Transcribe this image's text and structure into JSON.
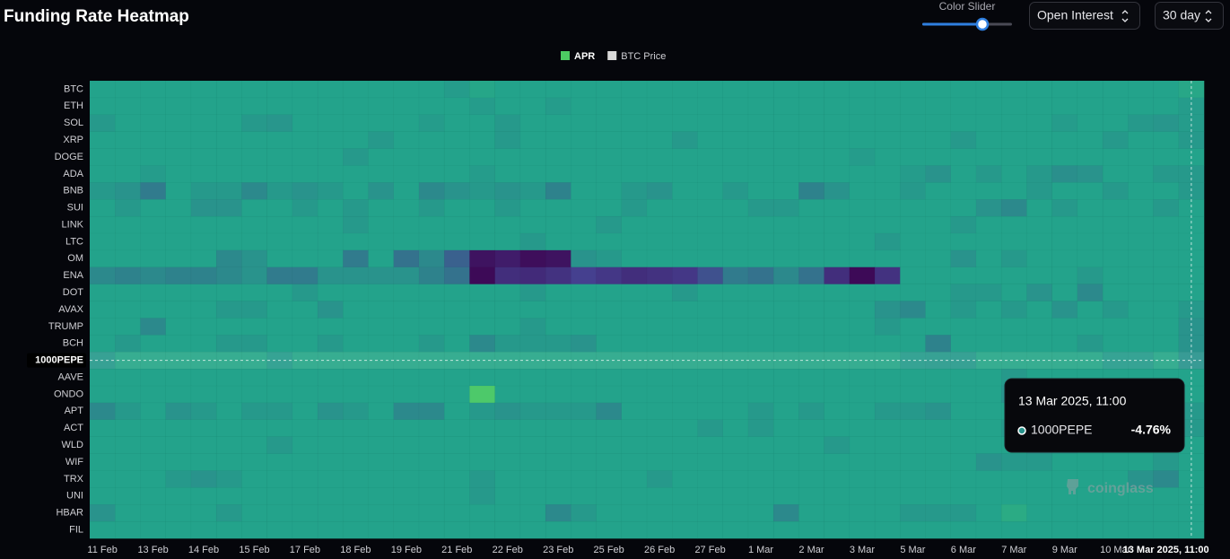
{
  "header": {
    "title": "Funding Rate Heatmap",
    "slider_label": "Color Slider",
    "metric": "Open Interest",
    "range": "30 day"
  },
  "chart_data": {
    "type": "heatmap",
    "legend": [
      {
        "name": "APR",
        "color": "#4ccb62"
      },
      {
        "name": "BTC Price",
        "color": "#d9d9d9"
      }
    ],
    "x": [
      "11 Feb",
      null,
      "13 Feb",
      null,
      "14 Feb",
      null,
      "15 Feb",
      null,
      "17 Feb",
      null,
      "18 Feb",
      null,
      "19 Feb",
      null,
      "21 Feb",
      null,
      "22 Feb",
      null,
      "23 Feb",
      null,
      "25 Feb",
      null,
      "26 Feb",
      null,
      "27 Feb",
      null,
      "1 Mar",
      null,
      "2 Mar",
      null,
      "3 Mar",
      null,
      "5 Mar",
      null,
      "6 Mar",
      null,
      "7 Mar",
      null,
      "9 Mar",
      null,
      "10 Mar",
      null,
      "13 Mar 2025, 11:00",
      null
    ],
    "rows": [
      "BTC",
      "ETH",
      "SOL",
      "XRP",
      "DOGE",
      "ADA",
      "BNB",
      "SUI",
      "LINK",
      "LTC",
      "OM",
      "ENA",
      "DOT",
      "AVAX",
      "TRUMP",
      "BCH",
      "1000PEPE",
      "AAVE",
      "ONDO",
      "APT",
      "ACT",
      "WLD",
      "WIF",
      "TRX",
      "UNI",
      "HBAR",
      "FIL"
    ],
    "values": [
      [
        0,
        0,
        0,
        0,
        0,
        0,
        0,
        0,
        0,
        0,
        0,
        0,
        0,
        0,
        -2,
        2,
        0,
        0,
        0,
        0,
        0,
        0,
        0,
        0,
        0,
        0,
        0,
        0,
        0,
        0,
        0,
        0,
        0,
        0,
        0,
        0,
        0,
        0,
        0,
        0,
        0,
        0,
        0,
        3
      ],
      [
        0,
        0,
        0,
        0,
        0,
        0,
        0,
        0,
        0,
        0,
        0,
        0,
        0,
        0,
        0,
        -2,
        0,
        0,
        -2,
        0,
        0,
        0,
        0,
        0,
        0,
        0,
        0,
        0,
        0,
        0,
        0,
        0,
        0,
        0,
        0,
        0,
        0,
        0,
        0,
        0,
        0,
        0,
        0,
        -2
      ],
      [
        -3,
        0,
        0,
        0,
        0,
        0,
        -3,
        -4,
        0,
        0,
        0,
        0,
        0,
        -2,
        0,
        0,
        -3,
        0,
        0,
        0,
        0,
        0,
        0,
        0,
        0,
        0,
        0,
        0,
        0,
        0,
        0,
        0,
        0,
        0,
        0,
        0,
        0,
        0,
        -2,
        0,
        0,
        -3,
        -4,
        -2
      ],
      [
        0,
        0,
        0,
        0,
        0,
        0,
        0,
        0,
        0,
        0,
        0,
        -3,
        0,
        0,
        0,
        0,
        -3,
        0,
        0,
        0,
        0,
        0,
        0,
        -3,
        0,
        0,
        0,
        0,
        0,
        0,
        0,
        0,
        0,
        0,
        -3,
        0,
        0,
        0,
        0,
        0,
        -3,
        0,
        0,
        -3
      ],
      [
        0,
        0,
        0,
        0,
        0,
        0,
        0,
        0,
        0,
        0,
        -3,
        0,
        0,
        0,
        0,
        0,
        0,
        0,
        0,
        0,
        0,
        0,
        0,
        0,
        0,
        0,
        0,
        0,
        0,
        0,
        -2,
        0,
        0,
        0,
        0,
        0,
        0,
        0,
        0,
        0,
        0,
        0,
        0,
        0
      ],
      [
        0,
        0,
        -2,
        0,
        0,
        0,
        0,
        0,
        0,
        0,
        0,
        0,
        0,
        0,
        0,
        -2,
        0,
        0,
        0,
        0,
        0,
        0,
        0,
        0,
        0,
        0,
        0,
        0,
        0,
        0,
        0,
        0,
        -2,
        -5,
        0,
        -3,
        0,
        -3,
        -6,
        -5,
        0,
        0,
        -3,
        -3
      ],
      [
        -3,
        -5,
        -12,
        0,
        -3,
        -3,
        -8,
        -3,
        -5,
        -3,
        0,
        -5,
        0,
        -8,
        -5,
        -3,
        -5,
        -3,
        -10,
        0,
        0,
        -3,
        -5,
        0,
        0,
        -3,
        0,
        0,
        -10,
        -5,
        0,
        0,
        -3,
        0,
        0,
        0,
        0,
        -3,
        0,
        0,
        -3,
        0,
        0,
        -3
      ],
      [
        0,
        -3,
        0,
        0,
        -5,
        -5,
        0,
        0,
        -3,
        0,
        -3,
        0,
        0,
        -3,
        0,
        0,
        -3,
        0,
        0,
        0,
        0,
        -3,
        0,
        0,
        0,
        0,
        -3,
        -3,
        0,
        0,
        0,
        0,
        0,
        0,
        0,
        -5,
        -8,
        0,
        -3,
        0,
        0,
        0,
        -3,
        0
      ],
      [
        0,
        0,
        0,
        0,
        0,
        0,
        0,
        0,
        0,
        0,
        -3,
        0,
        0,
        0,
        0,
        0,
        0,
        0,
        0,
        0,
        -3,
        0,
        0,
        0,
        0,
        0,
        0,
        0,
        0,
        0,
        0,
        0,
        0,
        0,
        -3,
        0,
        0,
        0,
        0,
        0,
        0,
        0,
        0,
        0
      ],
      [
        0,
        0,
        0,
        0,
        0,
        0,
        0,
        0,
        0,
        0,
        0,
        0,
        0,
        0,
        0,
        0,
        0,
        -3,
        0,
        0,
        0,
        0,
        0,
        0,
        0,
        0,
        0,
        0,
        0,
        0,
        0,
        -3,
        0,
        0,
        0,
        0,
        0,
        0,
        0,
        0,
        0,
        0,
        0,
        0
      ],
      [
        0,
        0,
        0,
        0,
        0,
        -8,
        -5,
        0,
        0,
        0,
        -12,
        0,
        -15,
        -8,
        -20,
        -55,
        -50,
        -58,
        -55,
        -5,
        -3,
        0,
        0,
        0,
        0,
        0,
        0,
        0,
        0,
        0,
        0,
        0,
        0,
        0,
        -5,
        0,
        -3,
        0,
        0,
        0,
        0,
        0,
        0,
        0
      ],
      [
        -8,
        -10,
        -8,
        -10,
        -10,
        -8,
        -5,
        -12,
        -12,
        -5,
        -5,
        -5,
        -5,
        -10,
        -15,
        -60,
        -40,
        -42,
        -38,
        -30,
        -35,
        -40,
        -38,
        -35,
        -25,
        -12,
        -15,
        -8,
        -15,
        -40,
        -60,
        -38,
        0,
        0,
        0,
        0,
        0,
        0,
        0,
        -3,
        0,
        0,
        0,
        0
      ],
      [
        0,
        0,
        0,
        0,
        0,
        0,
        0,
        0,
        -3,
        0,
        0,
        0,
        0,
        0,
        0,
        0,
        0,
        -3,
        0,
        0,
        0,
        0,
        0,
        -3,
        0,
        0,
        0,
        0,
        0,
        0,
        0,
        0,
        0,
        0,
        -3,
        -3,
        0,
        -5,
        0,
        -8,
        0,
        0,
        0,
        0
      ],
      [
        0,
        0,
        0,
        0,
        0,
        -3,
        -3,
        0,
        0,
        -5,
        0,
        0,
        0,
        0,
        0,
        0,
        0,
        0,
        0,
        0,
        0,
        0,
        0,
        0,
        0,
        0,
        0,
        0,
        0,
        0,
        0,
        -5,
        -8,
        0,
        -3,
        0,
        -3,
        0,
        -5,
        0,
        -3,
        0,
        0,
        -3
      ],
      [
        0,
        0,
        -8,
        0,
        0,
        0,
        0,
        0,
        0,
        0,
        0,
        0,
        0,
        0,
        0,
        0,
        0,
        -3,
        0,
        0,
        0,
        0,
        0,
        0,
        0,
        0,
        0,
        0,
        0,
        0,
        0,
        -3,
        0,
        0,
        0,
        0,
        0,
        0,
        0,
        0,
        0,
        0,
        0,
        -5
      ],
      [
        0,
        -3,
        0,
        0,
        0,
        -3,
        -3,
        0,
        0,
        -3,
        0,
        0,
        0,
        -3,
        0,
        -8,
        -3,
        -3,
        -3,
        -5,
        0,
        0,
        0,
        0,
        0,
        0,
        0,
        0,
        0,
        0,
        0,
        0,
        0,
        -10,
        0,
        0,
        0,
        0,
        0,
        -3,
        0,
        0,
        0,
        -5
      ],
      [
        -3,
        2,
        2,
        2,
        2,
        2,
        2,
        -2,
        2,
        2,
        2,
        2,
        2,
        2,
        2,
        2,
        2,
        2,
        2,
        2,
        2,
        2,
        2,
        2,
        2,
        2,
        2,
        2,
        2,
        2,
        2,
        2,
        -2,
        -3,
        -3,
        2,
        2,
        2,
        2,
        2,
        -2,
        -2,
        2,
        -4.76
      ],
      [
        0,
        0,
        0,
        0,
        0,
        0,
        0,
        0,
        0,
        0,
        0,
        0,
        0,
        0,
        0,
        0,
        0,
        0,
        0,
        0,
        0,
        0,
        0,
        0,
        0,
        0,
        0,
        0,
        0,
        0,
        0,
        0,
        0,
        0,
        0,
        0,
        -3,
        0,
        0,
        0,
        0,
        0,
        0,
        0
      ],
      [
        0,
        0,
        0,
        0,
        0,
        0,
        0,
        0,
        0,
        0,
        0,
        0,
        0,
        0,
        0,
        25,
        0,
        0,
        0,
        0,
        0,
        0,
        0,
        0,
        0,
        0,
        0,
        0,
        0,
        0,
        0,
        0,
        0,
        0,
        0,
        0,
        -5,
        0,
        -3,
        0,
        0,
        0,
        0,
        0
      ],
      [
        -8,
        -3,
        0,
        -5,
        -3,
        0,
        -3,
        -3,
        0,
        -5,
        -3,
        0,
        -8,
        -8,
        0,
        -3,
        -5,
        -3,
        -3,
        -3,
        -8,
        0,
        0,
        0,
        0,
        0,
        -3,
        0,
        -3,
        0,
        0,
        -3,
        -3,
        -5,
        0,
        0,
        0,
        -3,
        0,
        0,
        0,
        0,
        0,
        -3
      ],
      [
        0,
        0,
        0,
        0,
        0,
        0,
        0,
        0,
        0,
        0,
        0,
        0,
        0,
        0,
        0,
        0,
        0,
        0,
        0,
        0,
        0,
        0,
        0,
        0,
        -3,
        0,
        -3,
        0,
        0,
        0,
        0,
        0,
        0,
        0,
        0,
        0,
        -3,
        0,
        0,
        0,
        0,
        0,
        0,
        -3
      ],
      [
        0,
        0,
        0,
        0,
        0,
        0,
        0,
        -3,
        0,
        0,
        0,
        0,
        0,
        0,
        0,
        0,
        0,
        0,
        0,
        0,
        0,
        0,
        0,
        0,
        0,
        0,
        0,
        0,
        0,
        -3,
        0,
        0,
        0,
        0,
        0,
        0,
        0,
        -5,
        -3,
        0,
        0,
        0,
        0,
        0
      ],
      [
        0,
        0,
        0,
        0,
        0,
        0,
        0,
        0,
        0,
        0,
        0,
        0,
        0,
        0,
        0,
        0,
        0,
        0,
        0,
        0,
        0,
        0,
        0,
        0,
        0,
        0,
        0,
        0,
        0,
        0,
        0,
        0,
        0,
        0,
        0,
        -5,
        -3,
        -3,
        0,
        0,
        0,
        0,
        -3,
        0
      ],
      [
        0,
        0,
        0,
        -3,
        -5,
        -3,
        0,
        0,
        0,
        0,
        0,
        0,
        0,
        0,
        0,
        -3,
        0,
        0,
        0,
        0,
        0,
        0,
        -3,
        0,
        0,
        0,
        0,
        0,
        0,
        0,
        0,
        0,
        0,
        0,
        0,
        0,
        0,
        0,
        0,
        0,
        0,
        -5,
        -8,
        0
      ],
      [
        0,
        0,
        0,
        0,
        0,
        0,
        0,
        0,
        0,
        0,
        0,
        0,
        0,
        0,
        0,
        -3,
        0,
        0,
        0,
        0,
        0,
        0,
        0,
        0,
        0,
        0,
        0,
        0,
        0,
        0,
        0,
        0,
        0,
        0,
        0,
        0,
        0,
        0,
        0,
        0,
        0,
        0,
        0,
        0
      ],
      [
        -5,
        0,
        0,
        0,
        0,
        -3,
        0,
        0,
        0,
        0,
        0,
        0,
        0,
        0,
        0,
        0,
        0,
        0,
        -8,
        -3,
        0,
        0,
        0,
        0,
        0,
        0,
        0,
        -8,
        0,
        0,
        0,
        0,
        -3,
        -3,
        -3,
        0,
        5,
        0,
        0,
        0,
        0,
        0,
        0,
        0
      ],
      [
        0,
        0,
        0,
        0,
        0,
        0,
        0,
        0,
        0,
        0,
        0,
        0,
        0,
        0,
        0,
        0,
        0,
        0,
        0,
        0,
        0,
        0,
        0,
        0,
        0,
        0,
        0,
        0,
        0,
        0,
        0,
        0,
        0,
        0,
        0,
        0,
        0,
        0,
        0,
        0,
        0,
        0,
        0,
        0
      ]
    ],
    "zlim": [
      -60,
      30
    ],
    "colorscale": [
      "#3d0a57",
      "#45408f",
      "#23a38b",
      "#55d063"
    ],
    "tooltip": {
      "title": "13 Mar 2025, 11:00",
      "name": "1000PEPE",
      "value": -4.76,
      "value_label": "-4.76%"
    },
    "watermark": "coinglass"
  }
}
